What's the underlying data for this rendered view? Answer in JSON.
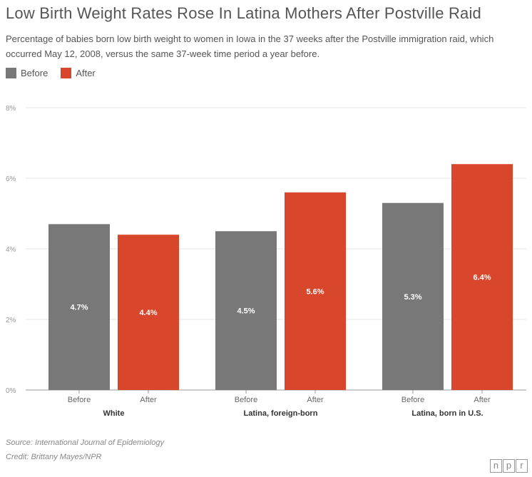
{
  "chart_data": {
    "type": "bar",
    "title": "Low Birth Weight Rates Rose In Latina Mothers After Postville Raid",
    "subtitle": "Percentage of babies born low birth weight to women in Iowa in the 37 weeks after the Postville immigration raid, which occurred May 12, 2008, versus the same 37-week time period a year before.",
    "legend": [
      "Before",
      "After"
    ],
    "legend_position": "top-left",
    "categories": [
      "White",
      "Latina, foreign-born",
      "Latina, born in U.S."
    ],
    "bar_labels": [
      "Before",
      "After"
    ],
    "series": [
      {
        "name": "Before",
        "color": "#787878",
        "values": [
          4.7,
          4.5,
          5.3
        ],
        "labels": [
          "4.7%",
          "4.5%",
          "5.3%"
        ]
      },
      {
        "name": "After",
        "color": "#d8472b",
        "values": [
          4.4,
          5.6,
          6.4
        ],
        "labels": [
          "4.4%",
          "5.6%",
          "6.4%"
        ]
      }
    ],
    "ylim": [
      0,
      8
    ],
    "yticks": [
      "0%",
      "2%",
      "4%",
      "6%",
      "8%"
    ],
    "grid": true
  },
  "footer": {
    "source": "Source: International Journal of Epidemiology",
    "credit": "Credit: Brittany Mayes/NPR"
  },
  "logo": {
    "letters": [
      "n",
      "p",
      "r"
    ]
  }
}
